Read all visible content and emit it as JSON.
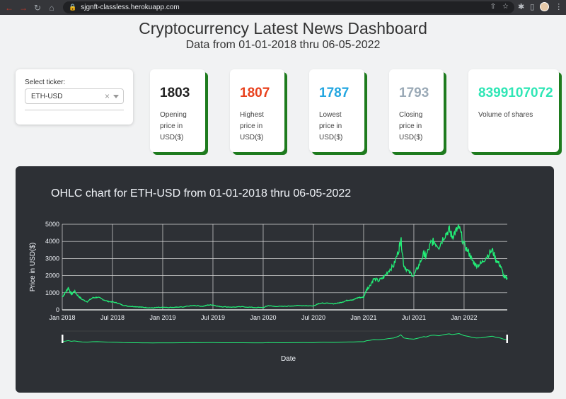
{
  "browser": {
    "url": "sjgnft-classless.herokuapp.com"
  },
  "header": {
    "title": "Cryptocurrency Latest News Dashboard",
    "subtitle": "Data from 01-01-2018 thru 06-05-2022"
  },
  "ticker": {
    "label": "Select ticker:",
    "value": "ETH-USD"
  },
  "stats": [
    {
      "value": "1803",
      "desc": "Opening price in USD($)",
      "color": "#222222"
    },
    {
      "value": "1807",
      "desc": "Highest price in USD($)",
      "color": "#e8401c"
    },
    {
      "value": "1787",
      "desc": "Lowest price in USD($)",
      "color": "#22a6e0"
    },
    {
      "value": "1793",
      "desc": "Closing price in USD($)",
      "color": "#9aa9b6"
    },
    {
      "value": "8399107072",
      "desc": "Volume of shares",
      "color": "#2ee6b5"
    }
  ],
  "chart_data": {
    "type": "line",
    "title": "OHLC chart for ETH-USD from 01-01-2018 thru 06-05-2022",
    "xlabel": "Date",
    "ylabel": "Price in USD($)",
    "ylim": [
      0,
      5000
    ],
    "xlim": [
      "2018-01-01",
      "2022-06-05"
    ],
    "yticks": [
      "0",
      "1000",
      "2000",
      "3000",
      "4000",
      "5000"
    ],
    "xticks": [
      "Jan 2018",
      "Jul 2018",
      "Jan 2019",
      "Jul 2019",
      "Jan 2020",
      "Jul 2020",
      "Jan 2021",
      "Jul 2021",
      "Jan 2022"
    ],
    "xtick_positions": [
      0,
      0.5,
      1,
      1.5,
      2,
      2.5,
      3,
      3.5,
      4
    ],
    "grid": true,
    "range_slider": true,
    "line_color": "#22ee77",
    "series": [
      {
        "x": [
          0.0,
          0.03,
          0.06,
          0.09,
          0.12,
          0.16,
          0.2,
          0.25,
          0.3,
          0.35,
          0.4,
          0.45,
          0.5,
          0.55,
          0.6,
          0.65,
          0.7,
          0.75,
          0.8,
          0.85,
          0.9,
          0.95,
          1.0,
          1.1,
          1.2,
          1.3,
          1.4,
          1.45,
          1.5,
          1.55,
          1.6,
          1.7,
          1.8,
          1.9,
          2.0,
          2.05,
          2.1,
          2.2,
          2.3,
          2.4,
          2.5,
          2.55,
          2.6,
          2.7,
          2.75,
          2.8,
          2.85,
          2.9,
          2.95,
          3.0,
          3.03,
          3.06,
          3.1,
          3.15,
          3.2,
          3.25,
          3.3,
          3.35,
          3.37,
          3.4,
          3.45,
          3.5,
          3.55,
          3.6,
          3.62,
          3.67,
          3.7,
          3.75,
          3.8,
          3.85,
          3.88,
          3.92,
          3.95,
          4.0,
          4.05,
          4.08,
          4.12,
          4.17,
          4.22,
          4.28,
          4.32,
          4.36,
          4.4,
          4.43
        ],
        "y": [
          750,
          1000,
          1300,
          900,
          1100,
          800,
          600,
          480,
          700,
          740,
          620,
          500,
          460,
          400,
          280,
          220,
          200,
          180,
          150,
          130,
          110,
          140,
          135,
          140,
          170,
          260,
          210,
          280,
          290,
          210,
          180,
          160,
          180,
          140,
          130,
          250,
          210,
          200,
          240,
          250,
          230,
          370,
          390,
          360,
          400,
          480,
          580,
          600,
          720,
          730,
          1200,
          1400,
          1800,
          1700,
          1900,
          2300,
          2600,
          3500,
          4200,
          2600,
          2200,
          2000,
          2600,
          3300,
          3100,
          3900,
          4000,
          3700,
          4300,
          4700,
          4300,
          4600,
          4800,
          3800,
          3300,
          2900,
          2600,
          2700,
          3100,
          3500,
          2900,
          2600,
          1900,
          1800
        ]
      }
    ]
  }
}
